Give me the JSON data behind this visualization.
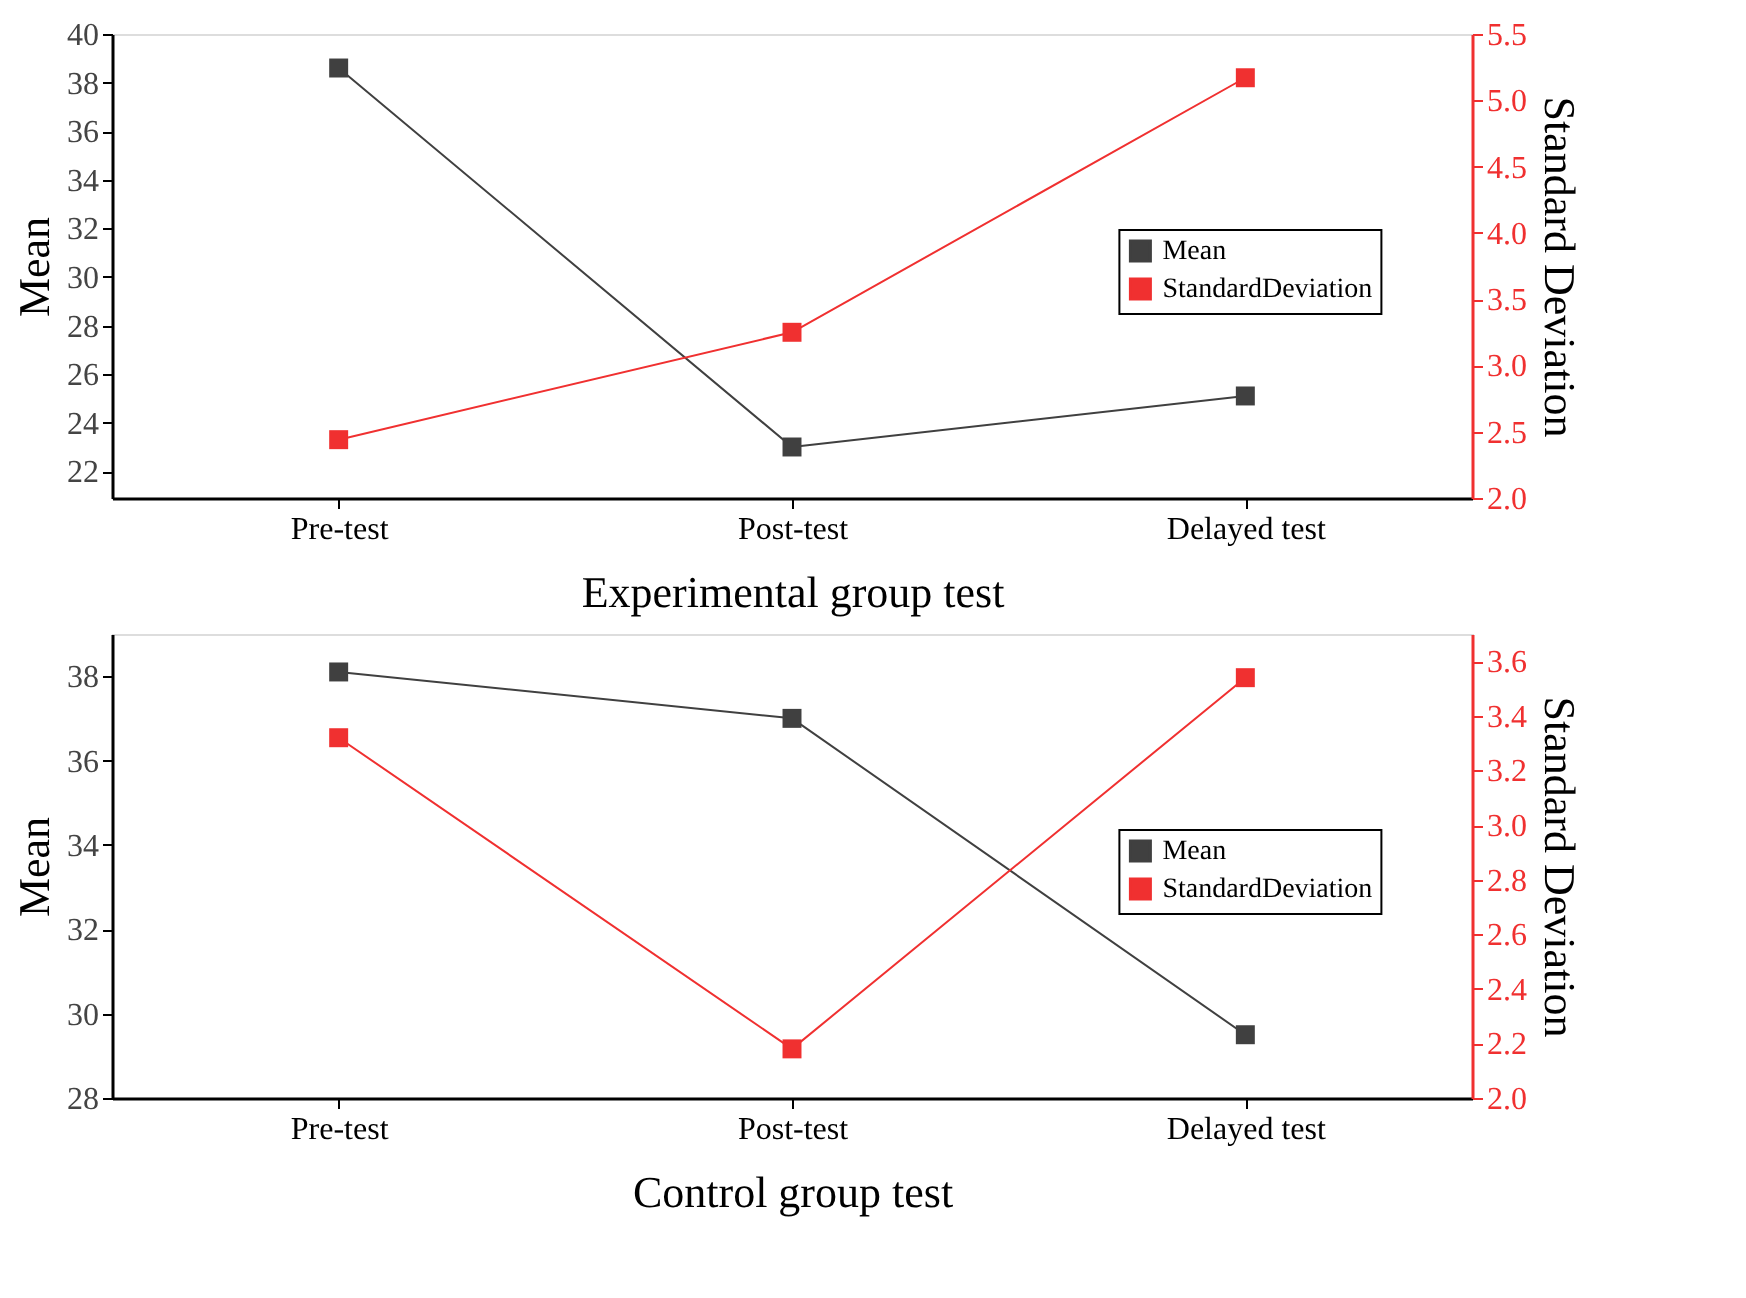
{
  "chart_data": [
    {
      "type": "line",
      "xlabel": "Experimental group test",
      "ylabel": "Mean",
      "y2label": "Standard Deviation",
      "categories": [
        "Pre-test",
        "Post-test",
        "Delayed test"
      ],
      "series": [
        {
          "name": "Mean",
          "color": "#404040",
          "values": [
            38.6,
            23.0,
            25.1
          ]
        },
        {
          "name": "StandardDeviation",
          "color": "#f03030",
          "axis": "y2",
          "values": [
            2.44,
            3.25,
            5.17
          ]
        }
      ],
      "ylim": [
        20.9,
        40
      ],
      "yticks": [
        22,
        24,
        26,
        28,
        30,
        32,
        34,
        36,
        38,
        40
      ],
      "y2lim": [
        2.0,
        5.5
      ],
      "y2ticks": [
        {
          "value": 2.0,
          "label": "2.0"
        },
        {
          "value": 2.5,
          "label": "2.5"
        },
        {
          "value": 3.0,
          "label": "3.0"
        },
        {
          "value": 3.5,
          "label": "3.5"
        },
        {
          "value": 4.0,
          "label": "4.0"
        },
        {
          "value": 4.5,
          "label": "4.5"
        },
        {
          "value": 5.0,
          "label": "5.0"
        },
        {
          "value": 5.5,
          "label": "5.5"
        }
      ],
      "grid": false,
      "legend": "right",
      "marker": "square",
      "line_style": "solid"
    },
    {
      "type": "line",
      "xlabel": "Control group test",
      "ylabel": "Mean",
      "y2label": "Standard Deviation",
      "categories": [
        "Pre-test",
        "Post-test",
        "Delayed test"
      ],
      "series": [
        {
          "name": "Mean",
          "color": "#404040",
          "values": [
            38.1,
            37.0,
            29.5
          ]
        },
        {
          "name": "StandardDeviation",
          "color": "#f03030",
          "axis": "y2",
          "values": [
            3.32,
            2.18,
            3.54
          ]
        }
      ],
      "ylim": [
        28,
        39
      ],
      "yticks": [
        28,
        30,
        32,
        34,
        36,
        38
      ],
      "y2lim": [
        2.0,
        3.7
      ],
      "y2ticks": [
        {
          "value": 2.0,
          "label": "2.0"
        },
        {
          "value": 2.2,
          "label": "2.2"
        },
        {
          "value": 2.4,
          "label": "2.4"
        },
        {
          "value": 2.6,
          "label": "2.6"
        },
        {
          "value": 2.8,
          "label": "2.8"
        },
        {
          "value": 3.0,
          "label": "3.0"
        },
        {
          "value": 3.2,
          "label": "3.2"
        },
        {
          "value": 3.4,
          "label": "3.4"
        },
        {
          "value": 3.6,
          "label": "3.6"
        }
      ],
      "grid": false,
      "legend": "right",
      "marker": "square",
      "line_style": "solid"
    }
  ]
}
